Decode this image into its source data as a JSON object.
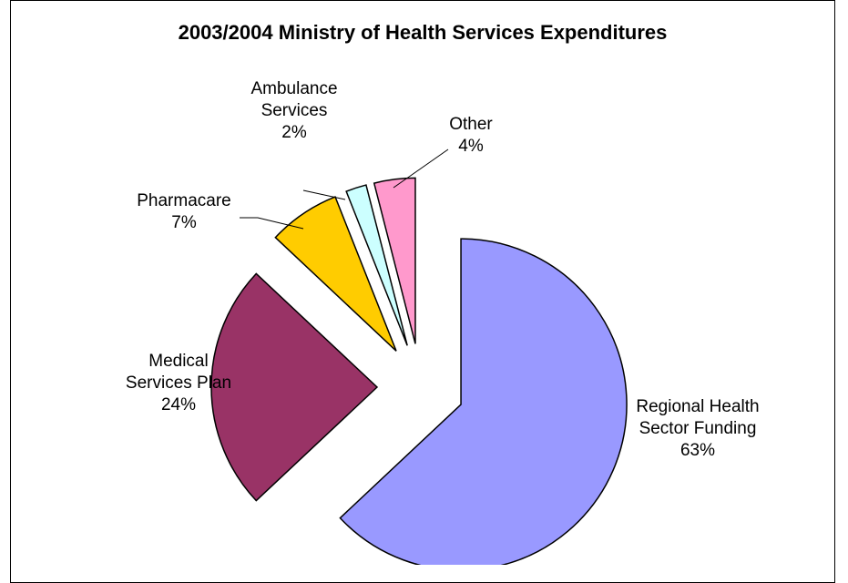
{
  "chart_data": {
    "type": "pie",
    "title": "2003/2004 Ministry of Health Services Expenditures",
    "exploded": true,
    "slices": [
      {
        "label_lines": [
          "Regional Health",
          "Sector Funding"
        ],
        "percent_label": "63%",
        "value": 63,
        "color": "#9999FF"
      },
      {
        "label_lines": [
          "Medical",
          "Services Plan"
        ],
        "percent_label": "24%",
        "value": 24,
        "color": "#993366"
      },
      {
        "label_lines": [
          "Pharmacare"
        ],
        "percent_label": "7%",
        "value": 7,
        "color": "#FFCC00"
      },
      {
        "label_lines": [
          "Ambulance",
          "Services"
        ],
        "percent_label": "2%",
        "value": 2,
        "color": "#CCFFFF"
      },
      {
        "label_lines": [
          "Other"
        ],
        "percent_label": "4%",
        "value": 4,
        "color": "#FF99CC"
      }
    ]
  }
}
